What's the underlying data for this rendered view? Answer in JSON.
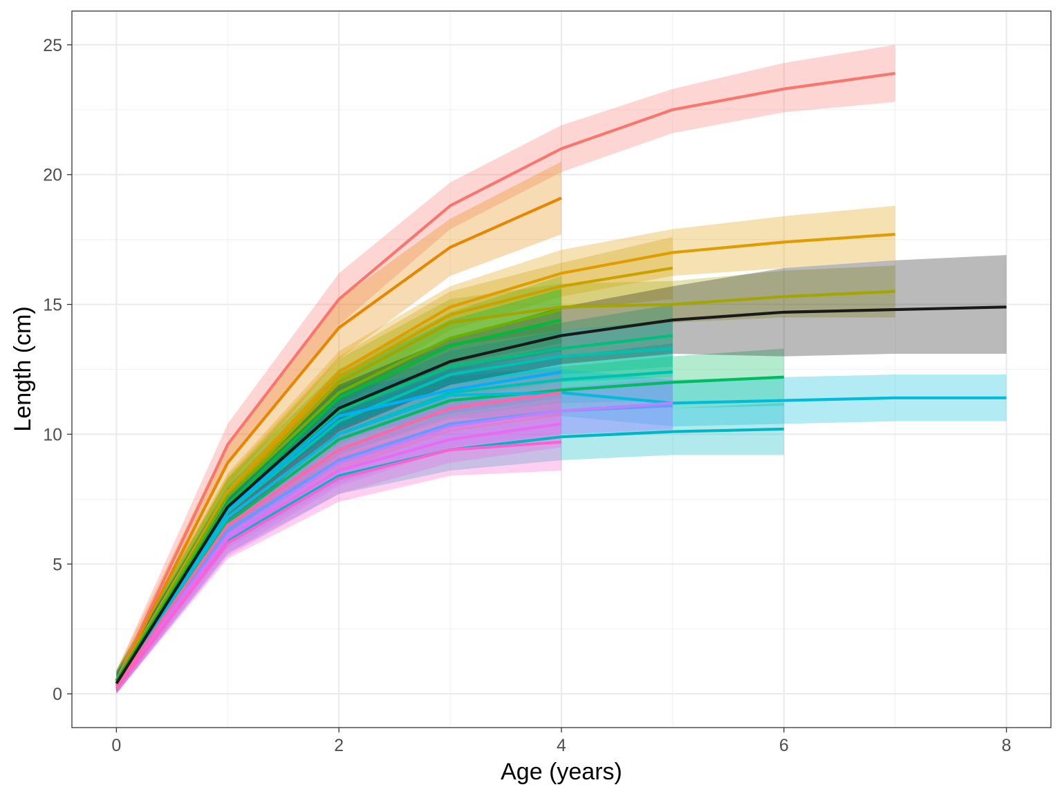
{
  "chart_data": {
    "type": "line",
    "title": "",
    "xlabel": "Age (years)",
    "ylabel": "Length (cm)",
    "xlim": [
      -0.4,
      8.4
    ],
    "ylim": [
      -1.3,
      26.3
    ],
    "x_ticks": [
      0,
      2,
      4,
      6,
      8
    ],
    "y_ticks": [
      0,
      5,
      10,
      15,
      20,
      25
    ],
    "x_tick_labels": [
      "0",
      "2",
      "4",
      "6",
      "8"
    ],
    "y_tick_labels": [
      "0",
      "5",
      "10",
      "15",
      "20",
      "25"
    ],
    "grid": true,
    "legend": "none",
    "bands": "confidence ribbons shown around each series",
    "series": [
      {
        "color": "#F8766D",
        "x": [
          0,
          1,
          2,
          3,
          4,
          5,
          6,
          7
        ],
        "y": [
          0.5,
          9.6,
          15.2,
          18.8,
          21.0,
          22.5,
          23.3,
          23.9
        ],
        "lower": [
          0.2,
          8.8,
          14.2,
          17.9,
          20.1,
          21.6,
          22.4,
          22.8
        ],
        "upper": [
          0.9,
          10.4,
          16.2,
          19.7,
          21.9,
          23.3,
          24.3,
          25.0
        ]
      },
      {
        "color": "#E58700",
        "x": [
          0,
          1,
          2,
          3,
          4
        ],
        "y": [
          0.5,
          8.9,
          14.1,
          17.2,
          19.1
        ],
        "lower": [
          0.2,
          8.0,
          12.9,
          16.1,
          17.7
        ],
        "upper": [
          0.9,
          9.7,
          15.2,
          18.3,
          20.5
        ]
      },
      {
        "color": "#DE9D00",
        "x": [
          0,
          1,
          2,
          3,
          4,
          5,
          6,
          7
        ],
        "y": [
          0.5,
          7.8,
          12.4,
          14.9,
          16.2,
          17.0,
          17.4,
          17.7
        ],
        "lower": [
          0.2,
          7.1,
          11.5,
          14.0,
          15.3,
          16.1,
          16.4,
          16.7
        ],
        "upper": [
          0.9,
          8.5,
          13.2,
          15.7,
          17.1,
          17.9,
          18.4,
          18.8
        ]
      },
      {
        "color": "#C9A200",
        "x": [
          0,
          1,
          2,
          3,
          4,
          5
        ],
        "y": [
          0.5,
          7.7,
          12.2,
          14.6,
          15.7,
          16.4
        ],
        "lower": [
          0.2,
          7.0,
          11.3,
          13.7,
          14.8,
          15.2
        ],
        "upper": [
          0.9,
          8.4,
          13.0,
          15.5,
          16.6,
          17.6
        ]
      },
      {
        "color": "#A3A500",
        "x": [
          0,
          1,
          2,
          3,
          4,
          5,
          6,
          7
        ],
        "y": [
          0.5,
          7.6,
          12.0,
          14.3,
          14.9,
          15.0,
          15.3,
          15.5
        ],
        "lower": [
          0.2,
          6.9,
          11.1,
          13.4,
          14.0,
          14.3,
          14.5,
          14.5
        ],
        "upper": [
          0.9,
          8.3,
          12.9,
          15.2,
          15.8,
          15.9,
          16.3,
          16.5
        ]
      },
      {
        "color": "#6BB100",
        "x": [
          0,
          1,
          2,
          3,
          4
        ],
        "y": [
          0.5,
          7.6,
          11.6,
          13.7,
          14.8
        ],
        "lower": [
          0.2,
          6.9,
          10.7,
          12.7,
          13.5
        ],
        "upper": [
          0.9,
          8.3,
          12.5,
          14.7,
          16.1
        ]
      },
      {
        "color": "#00BA38",
        "x": [
          0,
          1,
          2,
          3,
          4
        ],
        "y": [
          0.5,
          7.3,
          11.4,
          13.4,
          14.4
        ],
        "lower": [
          0.2,
          6.6,
          10.5,
          12.4,
          13.2
        ],
        "upper": [
          0.9,
          8.0,
          12.3,
          14.4,
          15.6
        ]
      },
      {
        "color": "#00BF7D",
        "x": [
          0,
          1,
          2,
          3,
          4,
          5
        ],
        "y": [
          0.4,
          7.2,
          10.9,
          12.6,
          13.3,
          13.8
        ],
        "lower": [
          0.1,
          6.5,
          10.0,
          11.7,
          12.3,
          12.6
        ],
        "upper": [
          0.8,
          7.9,
          11.8,
          13.5,
          14.3,
          15.0
        ]
      },
      {
        "color": "#00C0AF",
        "x": [
          0,
          1,
          2,
          3,
          4,
          5
        ],
        "y": [
          0.4,
          7.0,
          10.5,
          12.3,
          13.0,
          13.3
        ],
        "lower": [
          0.1,
          6.3,
          9.6,
          11.4,
          12.0,
          12.2
        ],
        "upper": [
          0.8,
          7.7,
          11.4,
          13.2,
          14.0,
          14.4
        ]
      },
      {
        "color": "#00C0AF",
        "x": [
          0,
          1,
          2,
          3,
          4,
          5
        ],
        "y": [
          0.4,
          6.8,
          10.0,
          11.6,
          12.1,
          12.4
        ],
        "lower": [
          0.1,
          6.1,
          9.2,
          10.7,
          11.2,
          11.3
        ],
        "upper": [
          0.8,
          7.5,
          10.8,
          12.5,
          13.0,
          13.5
        ]
      },
      {
        "color": "#00BC5E",
        "x": [
          0,
          1,
          2,
          3,
          4,
          5,
          6
        ],
        "y": [
          0.4,
          6.6,
          9.8,
          11.3,
          11.7,
          12.0,
          12.2
        ],
        "lower": [
          0.1,
          5.9,
          9.0,
          10.4,
          10.8,
          11.0,
          11.1
        ],
        "upper": [
          0.8,
          7.3,
          10.6,
          12.2,
          12.6,
          13.0,
          13.3
        ]
      },
      {
        "color": "#00BCD8",
        "x": [
          0,
          1,
          2,
          3,
          4,
          5,
          6,
          7,
          8
        ],
        "y": [
          0.4,
          6.8,
          10.0,
          11.5,
          11.6,
          11.2,
          11.3,
          11.4,
          11.4
        ],
        "lower": [
          0.1,
          6.1,
          9.2,
          10.6,
          10.7,
          10.3,
          10.4,
          10.5,
          10.5
        ],
        "upper": [
          0.8,
          7.5,
          10.8,
          12.4,
          12.5,
          12.1,
          12.2,
          12.3,
          12.3
        ]
      },
      {
        "color": "#00B0F6",
        "x": [
          0,
          1,
          2,
          3,
          4
        ],
        "y": [
          0.4,
          7.1,
          10.7,
          11.7,
          12.4
        ],
        "lower": [
          0.1,
          6.4,
          9.8,
          10.8,
          11.4
        ],
        "upper": [
          0.8,
          7.8,
          11.6,
          12.6,
          13.4
        ]
      },
      {
        "color": "#00B6C4",
        "x": [
          0,
          1,
          2,
          3,
          4,
          5,
          6
        ],
        "y": [
          0.3,
          5.9,
          8.4,
          9.4,
          9.9,
          10.1,
          10.2
        ],
        "lower": [
          0.0,
          5.4,
          7.7,
          8.6,
          9.0,
          9.2,
          9.2
        ],
        "upper": [
          0.6,
          6.5,
          9.1,
          10.2,
          10.8,
          11.0,
          11.2
        ]
      },
      {
        "color": "#619CFF",
        "x": [
          0,
          1,
          2,
          3,
          4,
          5
        ],
        "y": [
          0.3,
          6.3,
          9.0,
          10.4,
          10.9,
          11.1
        ],
        "lower": [
          0.0,
          5.6,
          8.1,
          9.5,
          10.0,
          10.1
        ],
        "upper": [
          0.7,
          7.0,
          9.9,
          11.3,
          11.8,
          12.1
        ]
      },
      {
        "color": "#B983FF",
        "x": [
          0,
          1,
          2,
          3,
          4,
          5
        ],
        "y": [
          0.3,
          6.1,
          8.9,
          10.3,
          10.9,
          11.2
        ],
        "lower": [
          0.0,
          5.4,
          8.0,
          9.4,
          10.0,
          10.2
        ],
        "upper": [
          0.7,
          6.8,
          9.8,
          11.2,
          11.8,
          12.2
        ]
      },
      {
        "color": "#E76BF3",
        "x": [
          0,
          1,
          2,
          3,
          4
        ],
        "y": [
          0.3,
          6.0,
          8.6,
          9.8,
          10.4
        ],
        "lower": [
          0.0,
          5.3,
          7.7,
          8.9,
          9.5
        ],
        "upper": [
          0.7,
          6.7,
          9.5,
          10.7,
          11.3
        ]
      },
      {
        "color": "#FD61D1",
        "x": [
          0,
          1,
          2,
          3,
          4
        ],
        "y": [
          0.2,
          5.8,
          8.3,
          9.4,
          9.7
        ],
        "lower": [
          0.0,
          5.2,
          7.4,
          8.4,
          8.6
        ],
        "upper": [
          0.6,
          6.4,
          9.2,
          10.4,
          10.8
        ]
      },
      {
        "color": "#FF67A4",
        "x": [
          0,
          1,
          2,
          3,
          4
        ],
        "y": [
          0.3,
          6.5,
          9.4,
          11.0,
          11.6
        ],
        "lower": [
          0.0,
          5.8,
          8.6,
          10.1,
          10.7
        ],
        "upper": [
          0.7,
          7.2,
          10.2,
          11.9,
          12.5
        ]
      },
      {
        "color": "#1A1A1A",
        "x": [
          0,
          1,
          2,
          3,
          4,
          5,
          6,
          7,
          8
        ],
        "y": [
          0.4,
          7.2,
          11.0,
          12.8,
          13.8,
          14.4,
          14.7,
          14.8,
          14.9
        ],
        "lower": [
          0.1,
          6.5,
          10.1,
          11.9,
          12.7,
          13.1,
          13.0,
          13.1,
          13.1
        ],
        "upper": [
          0.8,
          7.9,
          11.9,
          13.7,
          14.9,
          15.7,
          16.4,
          16.7,
          16.9
        ]
      }
    ]
  }
}
